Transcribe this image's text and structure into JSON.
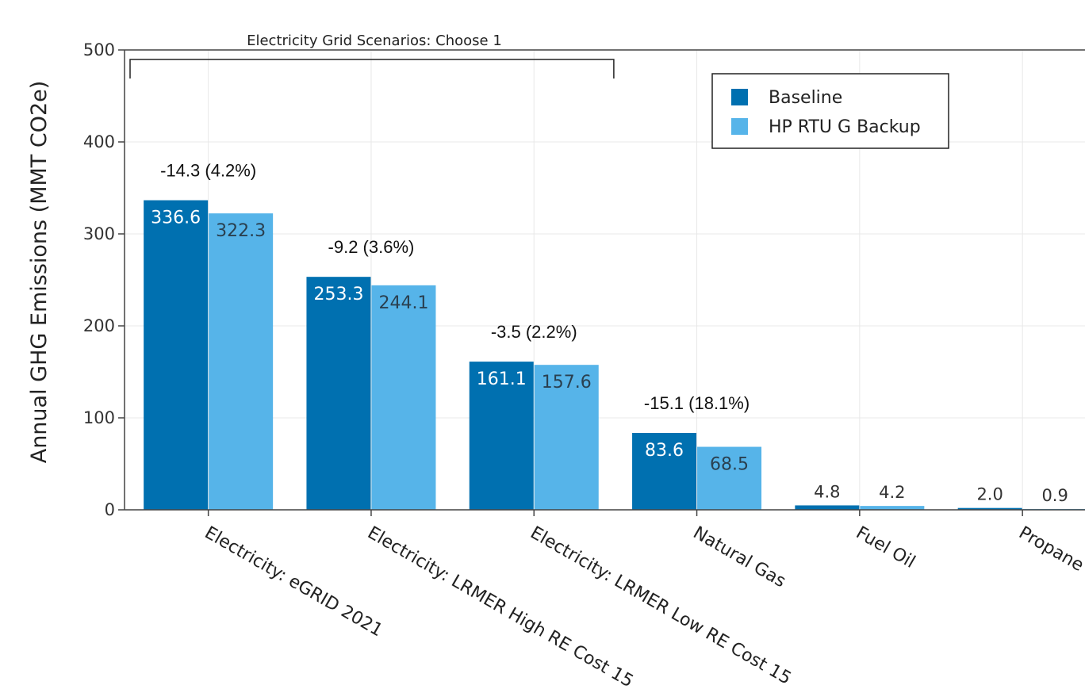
{
  "chart_data": {
    "type": "bar",
    "title": "",
    "xlabel": "",
    "ylabel": "Annual GHG Emissions (MMT CO2e)",
    "ylim": [
      0,
      500
    ],
    "yticks": [
      0,
      100,
      200,
      300,
      400,
      500
    ],
    "grid": true,
    "legend_position": "top-right",
    "categories": [
      "Electricity: eGRID 2021",
      "Electricity: LRMER High RE Cost 15",
      "Electricity: LRMER Low RE Cost 15",
      "Natural Gas",
      "Fuel Oil",
      "Propane"
    ],
    "series": [
      {
        "name": "Baseline",
        "color": "#0070b0",
        "values": [
          336.6,
          253.3,
          161.1,
          83.6,
          4.8,
          2.0
        ]
      },
      {
        "name": "HP RTU G Backup",
        "color": "#56b4e9",
        "values": [
          322.3,
          244.1,
          157.6,
          68.5,
          4.2,
          0.9
        ]
      }
    ],
    "value_labels": [
      [
        "336.6",
        "253.3",
        "161.1",
        "83.6",
        "4.8",
        "2.0"
      ],
      [
        "322.3",
        "244.1",
        "157.6",
        "68.5",
        "4.2",
        "0.9"
      ]
    ],
    "difference_labels": [
      "-14.3 (4.2%)",
      "-9.2 (3.6%)",
      "-3.5 (2.2%)",
      "-15.1 (18.1%)",
      "",
      ""
    ],
    "annotation": "Electricity Grid Scenarios: Choose 1",
    "annotation_categories": [
      0,
      2
    ]
  }
}
